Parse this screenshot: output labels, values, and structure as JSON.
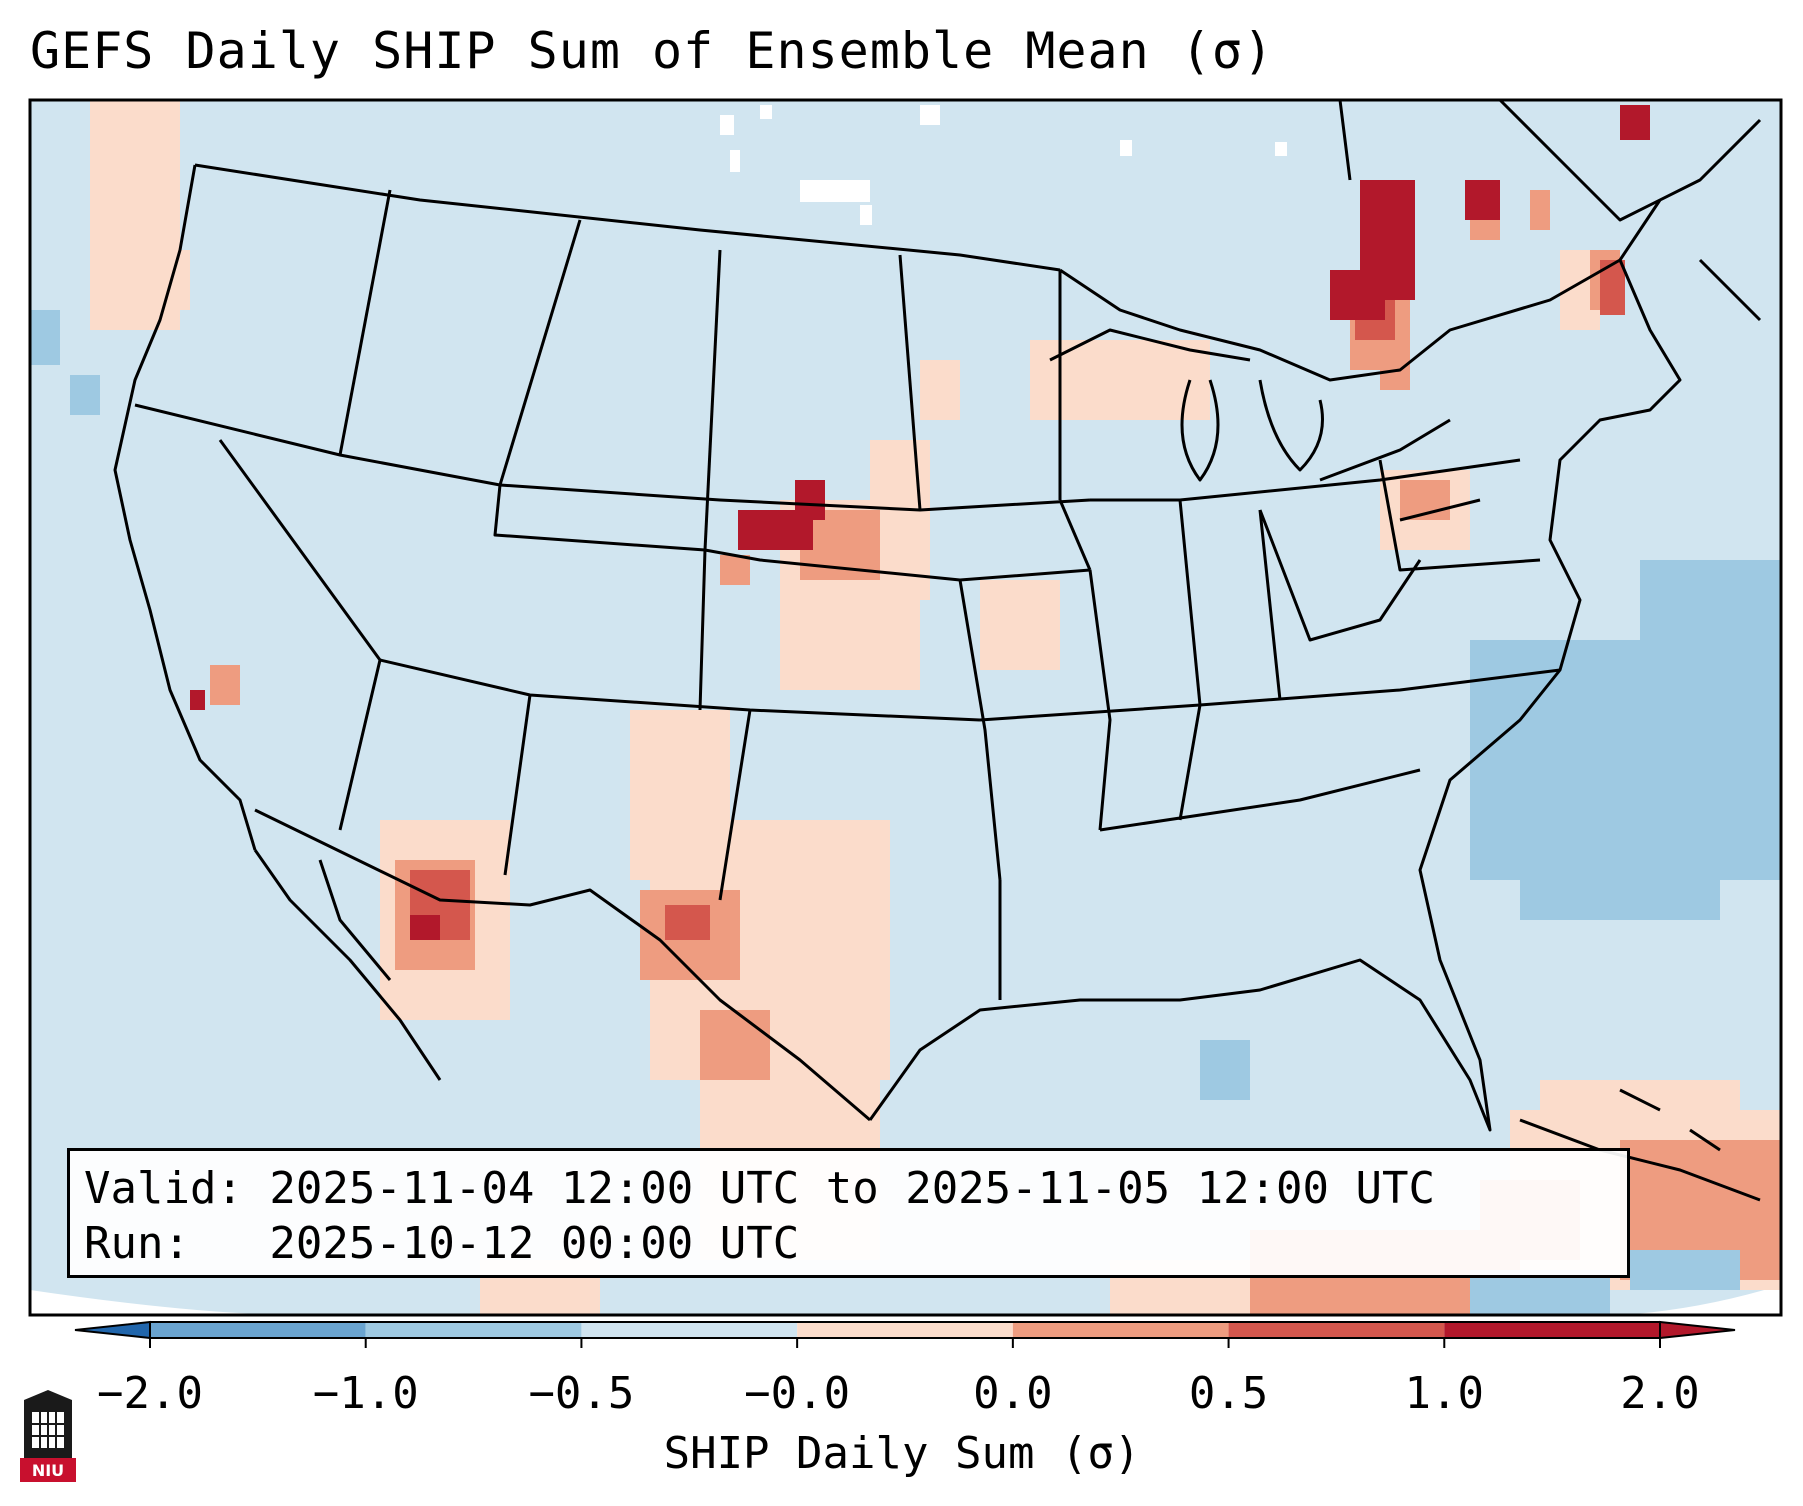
{
  "title": "GEFS Daily SHIP Sum of Ensemble Mean (σ)",
  "info": {
    "valid": "Valid: 2025-11-04 12:00 UTC to 2025-11-05 12:00 UTC",
    "run": "Run:   2025-10-12 00:00 UTC"
  },
  "colorbar": {
    "label": "SHIP Daily Sum (σ)",
    "ticks": [
      "−2.0",
      "−1.0",
      "−0.5",
      "−0.0",
      "0.0",
      "0.5",
      "1.0",
      "2.0"
    ],
    "colors": [
      "#3a78b5",
      "#6aa4d0",
      "#9ec9e2",
      "#d0e4f0",
      "#fbdccb",
      "#ee9c80",
      "#d4574d",
      "#b2182b"
    ],
    "extend_low_color": "#2166ac",
    "extend_high_color": "#b2182b"
  },
  "map": {
    "background_color": "#d1e5f0",
    "outside_color": "#ffffff",
    "region": "Contiguous United States and surroundings",
    "highlight_areas": [
      {
        "name": "Nebraska panhandle",
        "level": "> 1.0"
      },
      {
        "name": "Northern Ontario",
        "level": "> 1.0"
      },
      {
        "name": "Southern Arizona",
        "level": "0.5 to 2.0"
      },
      {
        "name": "West Texas",
        "level": "0.0 to 1.0"
      },
      {
        "name": "Western Atlantic",
        "level": "-1.0 to -0.5"
      }
    ]
  },
  "logo": {
    "text": "NIU"
  }
}
